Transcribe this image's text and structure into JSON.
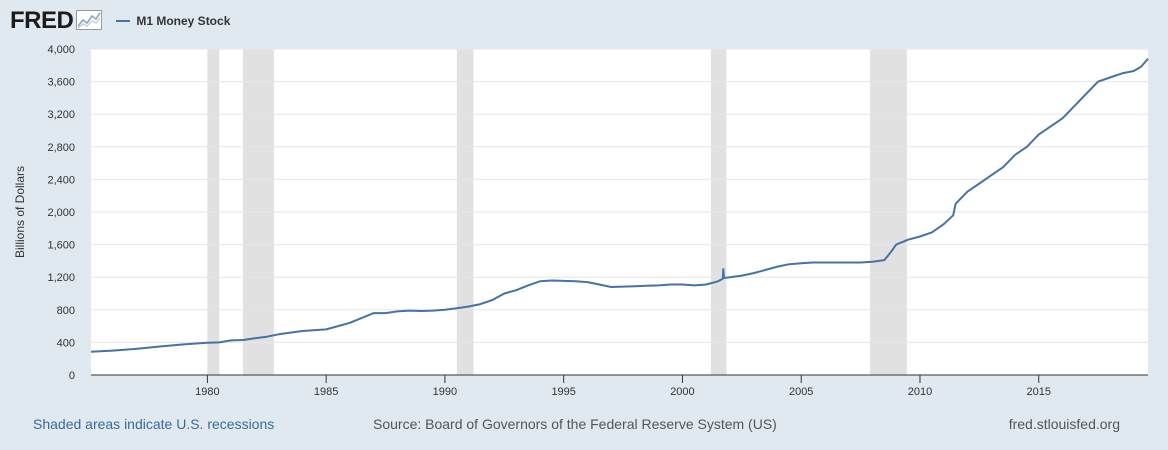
{
  "header": {
    "logo": "FRED",
    "logo_icon": "chart-line-icon",
    "series_legend": "M1 Money Stock"
  },
  "chart_data": {
    "type": "line",
    "ylabel": "Billions of Dollars",
    "xlabel": "",
    "ylim": [
      0,
      4000
    ],
    "xlim": [
      1975.1,
      2019.6
    ],
    "y_ticks": [
      "0",
      "400",
      "800",
      "1,200",
      "1,600",
      "2,000",
      "2,400",
      "2,800",
      "3,200",
      "3,600",
      "4,000"
    ],
    "x_ticks": [
      "1980",
      "1985",
      "1990",
      "1995",
      "2000",
      "2005",
      "2010",
      "2015"
    ],
    "grid": "horizontal",
    "series": [
      {
        "name": "M1 Money Stock",
        "color": "#4572a7",
        "x": [
          1975.1,
          1976,
          1977,
          1978,
          1979,
          1980,
          1980.5,
          1981,
          1981.5,
          1982,
          1982.5,
          1983,
          1983.5,
          1984,
          1985,
          1985.5,
          1986,
          1986.5,
          1987,
          1987.5,
          1988,
          1988.5,
          1989,
          1989.5,
          1990,
          1990.5,
          1991,
          1991.5,
          1992,
          1992.5,
          1993,
          1993.5,
          1994,
          1994.5,
          1995,
          1995.5,
          1996,
          1996.5,
          1997,
          1997.5,
          1998,
          1998.5,
          1999,
          1999.5,
          2000,
          2000.5,
          2001,
          2001.5,
          2001.7,
          2001.72,
          2001.75,
          2002,
          2002.5,
          2003,
          2003.5,
          2004,
          2004.5,
          2005,
          2005.5,
          2006,
          2006.5,
          2007,
          2007.5,
          2008,
          2008.5,
          2008.75,
          2009,
          2009.5,
          2010,
          2010.5,
          2011,
          2011.4,
          2011.5,
          2012,
          2012.5,
          2013,
          2013.5,
          2014,
          2014.5,
          2015,
          2015.5,
          2016,
          2016.5,
          2017,
          2017.5,
          2018,
          2018.5,
          2019,
          2019.3,
          2019.45,
          2019.6
        ],
        "values": [
          285,
          300,
          320,
          350,
          375,
          395,
          400,
          425,
          430,
          450,
          470,
          500,
          520,
          540,
          560,
          600,
          640,
          700,
          760,
          760,
          780,
          790,
          785,
          790,
          800,
          820,
          840,
          870,
          920,
          1000,
          1040,
          1100,
          1150,
          1160,
          1155,
          1150,
          1140,
          1110,
          1080,
          1085,
          1090,
          1095,
          1100,
          1110,
          1110,
          1100,
          1110,
          1150,
          1180,
          1300,
          1190,
          1200,
          1220,
          1250,
          1290,
          1330,
          1360,
          1370,
          1380,
          1380,
          1380,
          1380,
          1380,
          1390,
          1410,
          1500,
          1600,
          1660,
          1700,
          1750,
          1850,
          1960,
          2100,
          2250,
          2350,
          2450,
          2550,
          2700,
          2800,
          2950,
          3050,
          3150,
          3300,
          3450,
          3600,
          3650,
          3700,
          3730,
          3780,
          3830,
          3880
        ]
      }
    ],
    "recessions": [
      [
        1980.0,
        1980.5
      ],
      [
        1981.5,
        1982.8
      ],
      [
        1990.5,
        1991.2
      ],
      [
        2001.2,
        2001.85
      ],
      [
        2007.9,
        2009.45
      ]
    ]
  },
  "footer": {
    "note": "Shaded areas indicate U.S. recessions",
    "source": "Source: Board of Governors of the Federal Reserve System (US)",
    "site": "fred.stlouisfed.org"
  }
}
